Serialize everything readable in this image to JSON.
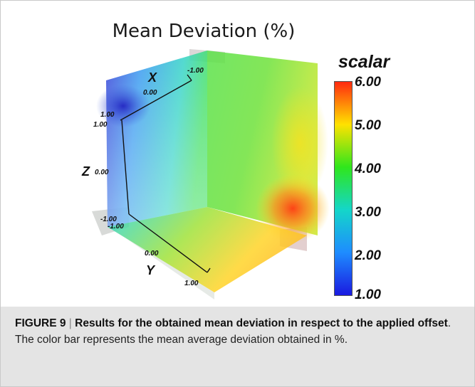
{
  "chart_data": {
    "type": "heatmap",
    "title": "Mean Deviation (%)",
    "colorbar": {
      "title": "scalar",
      "min": 1.0,
      "max": 6.0,
      "ticks": [
        "6.00",
        "5.00",
        "4.00",
        "3.00",
        "2.00",
        "1.00"
      ],
      "colors": [
        "#ff2a10",
        "#ffe200",
        "#2fe61c",
        "#14d6c9",
        "#1e8cff",
        "#1a1ae0"
      ]
    },
    "axes": {
      "x": {
        "label": "X",
        "ticks": [
          "0.00",
          "-1.00"
        ]
      },
      "y": {
        "label": "Y",
        "ticks": [
          "0.00",
          "1.00"
        ]
      },
      "z": {
        "label": "Z",
        "ticks": [
          "1.00",
          "0.00",
          "-1.00"
        ]
      },
      "corner_labels": [
        "1.00",
        "-1.00"
      ]
    }
  },
  "caption": {
    "figure_label": "FIGURE 9",
    "separator": "|",
    "title": "Results for the obtained mean deviation in respect to the applied offset",
    "text": ". The color bar represents the mean average deviation obtained in %."
  }
}
